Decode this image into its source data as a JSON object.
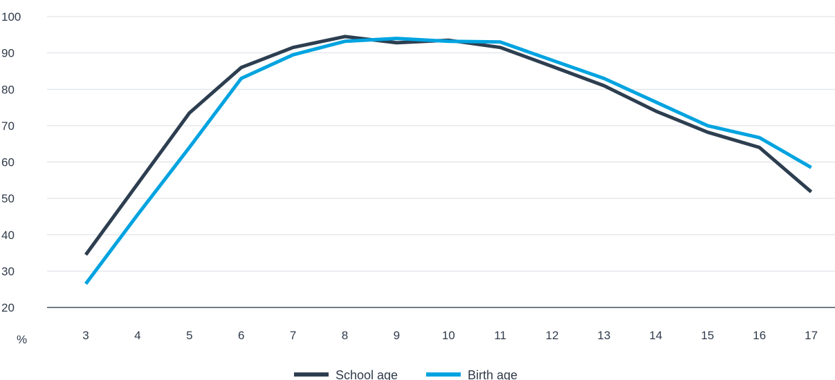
{
  "chart_data": {
    "type": "line",
    "title": "",
    "xlabel": "",
    "ylabel": "%",
    "x": [
      3,
      4,
      5,
      6,
      7,
      8,
      9,
      10,
      11,
      12,
      13,
      14,
      15,
      16,
      17
    ],
    "ylim": [
      20,
      100
    ],
    "yticks": [
      20,
      30,
      40,
      50,
      60,
      70,
      80,
      90,
      100
    ],
    "grid": true,
    "legend_position": "bottom-center",
    "series": [
      {
        "name": "School age",
        "color": "#2d3e50",
        "values": [
          34.5,
          54.0,
          73.5,
          86.0,
          91.5,
          94.5,
          92.8,
          93.5,
          91.5,
          86.3,
          81.0,
          74.0,
          68.2,
          64.0,
          51.8
        ]
      },
      {
        "name": "Birth age",
        "color": "#00a3e0",
        "values": [
          26.5,
          45.5,
          64.0,
          83.0,
          89.5,
          93.2,
          94.0,
          93.2,
          93.0,
          88.0,
          83.0,
          76.5,
          70.0,
          66.7,
          58.5
        ]
      }
    ]
  }
}
